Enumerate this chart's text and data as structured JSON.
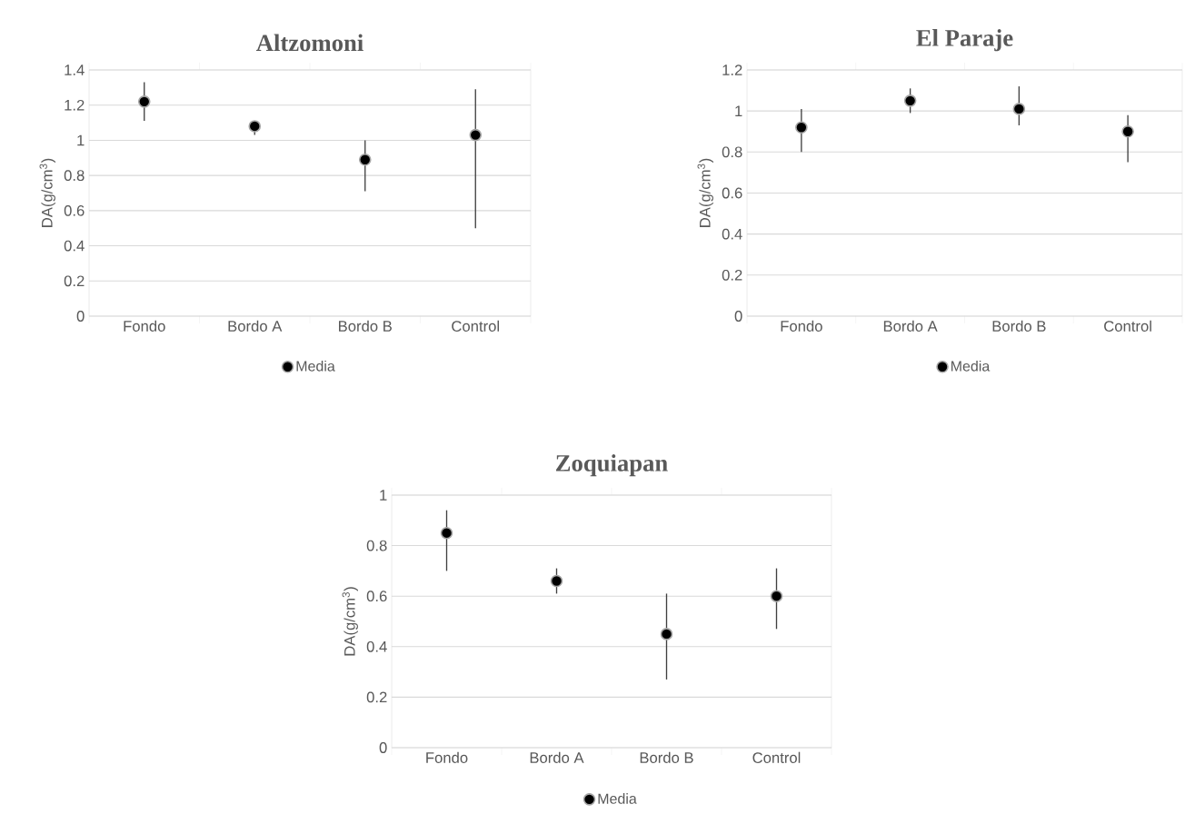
{
  "chart_data": [
    {
      "type": "scatter",
      "title": "Altzomoni",
      "ylabel": "DA(g/cm$^{3}$)",
      "categories": [
        "Fondo",
        "Bordo A",
        "Bordo B",
        "Control"
      ],
      "ylim": [
        0,
        1.4
      ],
      "yticks": [
        0,
        0.2,
        0.4,
        0.6,
        0.8,
        1,
        1.2,
        1.4
      ],
      "grid": "y",
      "legend": "bottom",
      "marker": "circle",
      "series": [
        {
          "name": "Media",
          "color": "#000000",
          "values": [
            1.22,
            1.08,
            0.89,
            1.03
          ],
          "errors": [
            [
              1.11,
              1.33
            ],
            [
              1.03,
              1.09
            ],
            [
              0.71,
              1.0
            ],
            [
              0.5,
              1.29
            ]
          ]
        }
      ]
    },
    {
      "type": "scatter",
      "title": "El Paraje",
      "ylabel": "DA(g/cm$^{3}$)",
      "categories": [
        "Fondo",
        "Bordo A",
        "Bordo B",
        "Control"
      ],
      "ylim": [
        0,
        1.2
      ],
      "yticks": [
        0,
        0.2,
        0.4,
        0.6,
        0.8,
        1,
        1.2
      ],
      "grid": "y",
      "legend": "bottom",
      "marker": "circle",
      "series": [
        {
          "name": "Media",
          "color": "#000000",
          "values": [
            0.92,
            1.05,
            1.01,
            0.9
          ],
          "errors": [
            [
              0.8,
              1.01
            ],
            [
              0.99,
              1.11
            ],
            [
              0.93,
              1.12
            ],
            [
              0.75,
              0.98
            ]
          ]
        }
      ]
    },
    {
      "type": "scatter",
      "title": "Zoquiapan",
      "ylabel": "DA(g/cm$^{3}$)",
      "categories": [
        "Fondo",
        "Bordo A",
        "Bordo B",
        "Control"
      ],
      "ylim": [
        0,
        1
      ],
      "yticks": [
        0,
        0.2,
        0.4,
        0.6,
        0.8,
        1
      ],
      "grid": "y",
      "legend": "bottom",
      "marker": "circle",
      "series": [
        {
          "name": "Media",
          "color": "#000000",
          "values": [
            0.85,
            0.66,
            0.45,
            0.6
          ],
          "errors": [
            [
              0.7,
              0.94
            ],
            [
              0.61,
              0.71
            ],
            [
              0.27,
              0.61
            ],
            [
              0.47,
              0.71
            ]
          ]
        }
      ]
    }
  ]
}
